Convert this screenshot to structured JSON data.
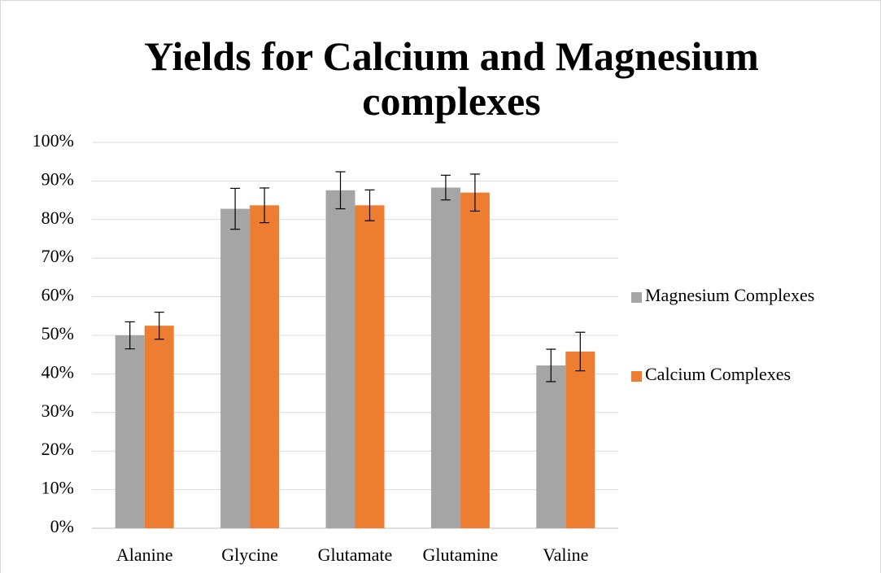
{
  "chart_data": {
    "type": "bar",
    "title": "Yields for Calcium and Magnesium complexes",
    "categories": [
      "Alanine",
      "Glycine",
      "Glutamate",
      "Glutamine",
      "Valine"
    ],
    "series": [
      {
        "name": "Magnesium Complexes",
        "color": "#a5a5a5",
        "values": [
          50.0,
          82.8,
          87.6,
          88.3,
          42.2
        ],
        "errors": [
          3.5,
          5.3,
          4.8,
          3.2,
          4.2
        ]
      },
      {
        "name": "Calcium Complexes",
        "color": "#ed7d31",
        "values": [
          52.5,
          83.7,
          83.7,
          87.0,
          45.8
        ],
        "errors": [
          3.5,
          4.5,
          4.0,
          4.8,
          5.0
        ]
      }
    ],
    "ylim": [
      0,
      100
    ],
    "yticks": [
      {
        "value": 0,
        "label": "0%"
      },
      {
        "value": 10,
        "label": "10%"
      },
      {
        "value": 20,
        "label": "20%"
      },
      {
        "value": 30,
        "label": "30%"
      },
      {
        "value": 40,
        "label": "40%"
      },
      {
        "value": 50,
        "label": "50%"
      },
      {
        "value": 60,
        "label": "60%"
      },
      {
        "value": 70,
        "label": "70%"
      },
      {
        "value": 80,
        "label": "80%"
      },
      {
        "value": 90,
        "label": "90%"
      },
      {
        "value": 100,
        "label": "100%"
      }
    ],
    "grid": true,
    "legend": "right"
  }
}
